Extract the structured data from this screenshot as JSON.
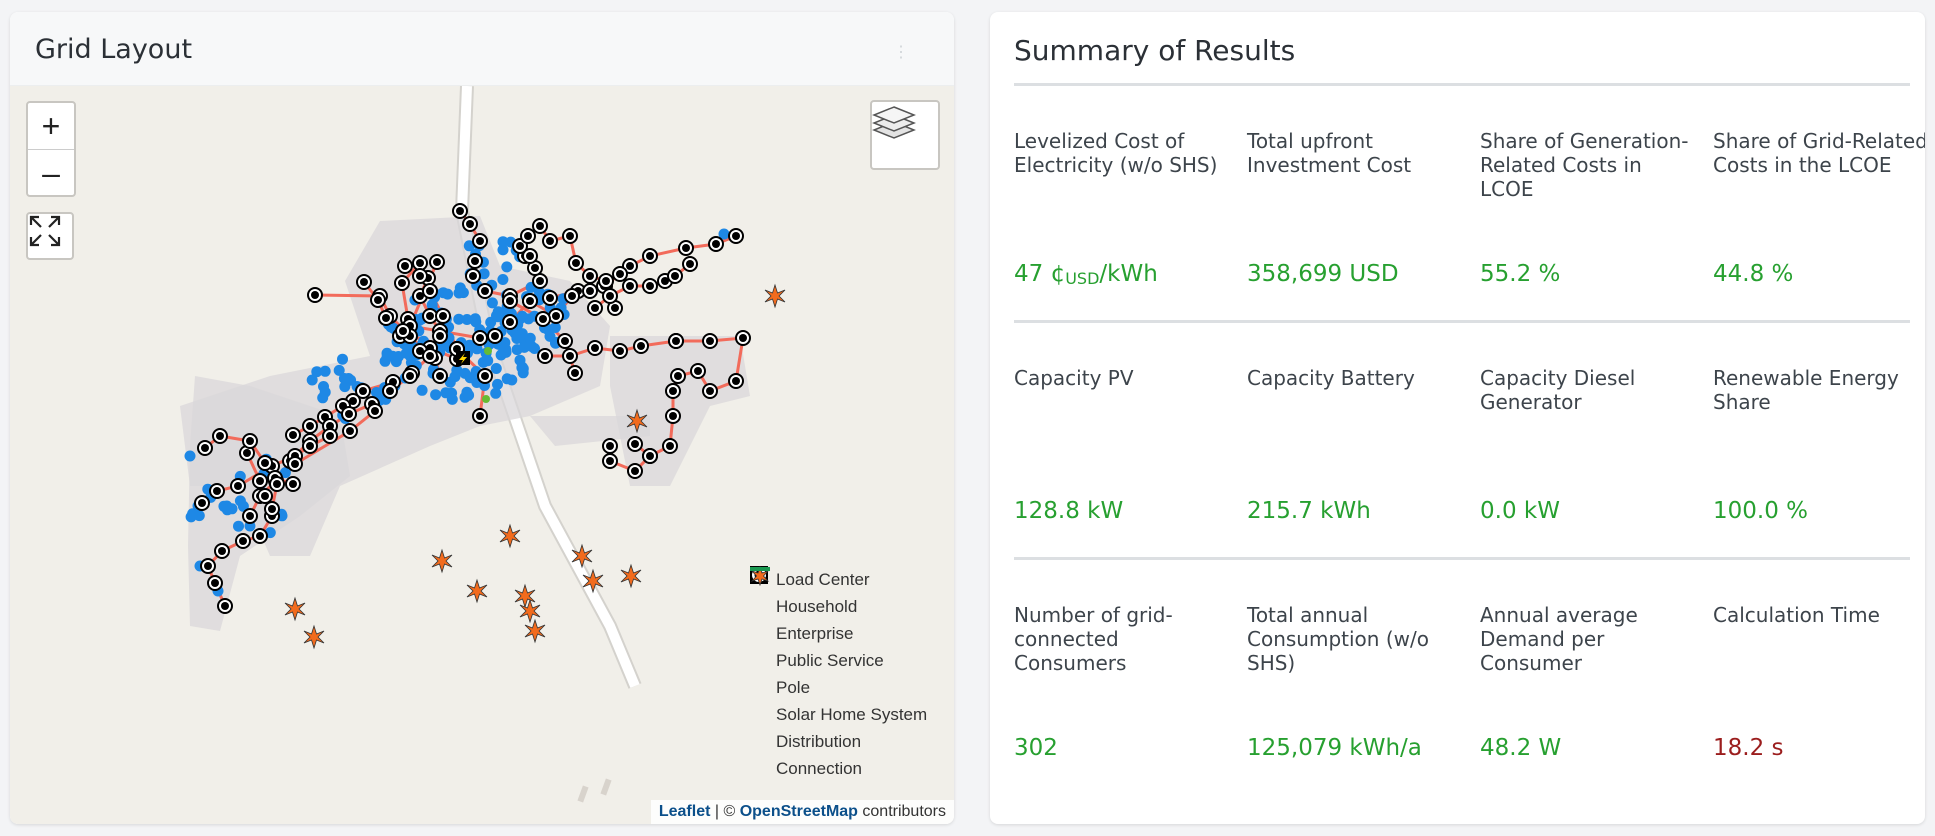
{
  "grid_layout": {
    "title": "Grid Layout",
    "info_icon": "info-icon",
    "zoom_in": "+",
    "zoom_out": "–",
    "legend": [
      {
        "label": "Load Center",
        "symbol": "load-center",
        "color": "#000000"
      },
      {
        "label": "Household",
        "symbol": "household",
        "color": "#1e88e5"
      },
      {
        "label": "Enterprise",
        "symbol": "enterprise",
        "color": "#66bb33"
      },
      {
        "label": "Public Service",
        "symbol": "public-service",
        "color": "#e040fb"
      },
      {
        "label": "Pole",
        "symbol": "pole",
        "color": "#000000"
      },
      {
        "label": "Solar Home System",
        "symbol": "solar-home-system",
        "color": "#f26b1d"
      },
      {
        "label": "Distribution",
        "symbol": "distribution-line",
        "color": "#f26b5b"
      },
      {
        "label": "Connection",
        "symbol": "connection-line",
        "color": "#1a9850"
      }
    ],
    "attribution": {
      "leaflet": "Leaflet",
      "sep": " | © ",
      "osm": "OpenStreetMap",
      "rest": " contributors"
    }
  },
  "summary": {
    "title": "Summary of Results",
    "metrics": [
      {
        "label": "Levelized Cost of Electricity (w/o SHS)",
        "value_main": "47 ¢",
        "value_sub": "USD",
        "value_tail": "/kWh"
      },
      {
        "label": "Total upfront Investment Cost",
        "value": "358,699 USD"
      },
      {
        "label": "Share of Generation-Related Costs in LCOE",
        "value": "55.2 %"
      },
      {
        "label": "Share of Grid-Related Costs in the LCOE",
        "value": "44.8 %"
      },
      {
        "label": "Capacity PV",
        "value": "128.8 kW"
      },
      {
        "label": "Capacity Battery",
        "value": "215.7 kWh"
      },
      {
        "label": "Capacity Diesel Generator",
        "value": "0.0 kW"
      },
      {
        "label": "Renewable Energy Share",
        "value": "100.0 %"
      },
      {
        "label": "Number of grid-connected Consumers",
        "value": "302"
      },
      {
        "label": "Total annual Consumption (w/o SHS)",
        "value": "125,079 kWh/a"
      },
      {
        "label": "Annual average Demand per Consumer",
        "value": "48.2 W"
      },
      {
        "label": "Calculation Time",
        "value": "18.2 s"
      }
    ]
  },
  "colors": {
    "value_green": "#27a030",
    "value_red": "#9b1d1d",
    "pole": "#000000",
    "household": "#1e88e5",
    "distribution": "#f26b5b",
    "shs": "#f26b1d"
  }
}
